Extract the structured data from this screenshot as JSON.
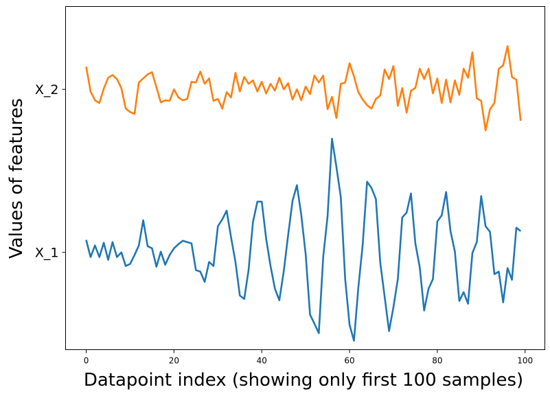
{
  "chart_data": {
    "type": "line",
    "title": "",
    "xlabel": "Datapoint index (showing only first 100 samples)",
    "ylabel": "Values of features",
    "x_ticks": [
      0,
      20,
      40,
      60,
      80,
      100
    ],
    "x_tick_labels": [
      "0",
      "20",
      "40",
      "60",
      "80",
      "100"
    ],
    "xlim": [
      -4.7,
      104.5
    ],
    "y_ticks": [
      0,
      1
    ],
    "y_tick_labels": [
      "X_1",
      "X_2"
    ],
    "ylim": [
      -0.597,
      1.508
    ],
    "grid": false,
    "legend": null,
    "x": [
      0,
      1,
      2,
      3,
      4,
      5,
      6,
      7,
      8,
      9,
      10,
      11,
      12,
      13,
      14,
      15,
      16,
      17,
      18,
      19,
      20,
      21,
      22,
      23,
      24,
      25,
      26,
      27,
      28,
      29,
      30,
      31,
      32,
      33,
      34,
      35,
      36,
      37,
      38,
      39,
      40,
      41,
      42,
      43,
      44,
      45,
      46,
      47,
      48,
      49,
      50,
      51,
      52,
      53,
      54,
      55,
      56,
      57,
      58,
      59,
      60,
      61,
      62,
      63,
      64,
      65,
      66,
      67,
      68,
      69,
      70,
      71,
      72,
      73,
      74,
      75,
      76,
      77,
      78,
      79,
      80,
      81,
      82,
      83,
      84,
      85,
      86,
      87,
      88,
      89,
      90,
      91,
      92,
      93,
      94,
      95,
      96,
      97,
      98,
      99
    ],
    "series": [
      {
        "name": "X_1",
        "color": "#1f77b4",
        "values": [
          0.076,
          -0.029,
          0.042,
          -0.029,
          0.059,
          -0.046,
          0.063,
          -0.029,
          0.0,
          -0.084,
          -0.071,
          -0.017,
          0.042,
          0.197,
          0.038,
          0.025,
          -0.088,
          0.004,
          -0.076,
          -0.017,
          0.025,
          0.05,
          0.071,
          0.063,
          0.055,
          -0.109,
          -0.118,
          -0.181,
          -0.059,
          -0.084,
          0.16,
          0.202,
          0.256,
          0.092,
          -0.059,
          -0.265,
          -0.286,
          -0.109,
          0.185,
          0.311,
          0.311,
          0.084,
          -0.084,
          -0.223,
          -0.294,
          -0.118,
          0.105,
          0.315,
          0.412,
          0.231,
          -0.008,
          -0.382,
          -0.437,
          -0.496,
          -0.029,
          0.223,
          0.697,
          0.525,
          0.34,
          -0.164,
          -0.445,
          -0.542,
          -0.219,
          0.046,
          0.433,
          0.395,
          0.328,
          -0.063,
          -0.273,
          -0.483,
          -0.336,
          -0.164,
          0.214,
          0.244,
          0.361,
          0.055,
          -0.092,
          -0.357,
          -0.223,
          -0.164,
          0.189,
          0.227,
          0.37,
          0.13,
          0.004,
          -0.298,
          -0.244,
          -0.315,
          -0.004,
          0.063,
          0.345,
          0.16,
          0.126,
          -0.134,
          -0.118,
          -0.307,
          -0.097,
          -0.168,
          0.151,
          0.13
        ]
      },
      {
        "name": "X_2",
        "color": "#ff7f0e",
        "values": [
          1.139,
          0.987,
          0.933,
          0.916,
          1.004,
          1.071,
          1.088,
          1.063,
          1.008,
          0.882,
          0.861,
          0.849,
          1.042,
          1.067,
          1.092,
          1.105,
          1.013,
          0.92,
          0.933,
          0.929,
          1.0,
          0.95,
          0.933,
          0.941,
          1.046,
          1.042,
          1.109,
          1.034,
          1.067,
          0.929,
          0.941,
          0.882,
          0.983,
          0.95,
          1.101,
          0.987,
          1.076,
          1.034,
          1.055,
          0.987,
          1.046,
          0.975,
          1.034,
          0.992,
          1.071,
          1.0,
          1.038,
          0.937,
          1.0,
          0.933,
          1.017,
          0.971,
          1.084,
          1.042,
          1.084,
          0.878,
          0.954,
          0.824,
          1.034,
          1.042,
          1.16,
          1.08,
          0.983,
          0.937,
          0.903,
          0.882,
          0.941,
          0.962,
          1.122,
          1.063,
          1.143,
          0.899,
          1.008,
          0.857,
          0.992,
          1.008,
          1.126,
          1.063,
          1.126,
          0.975,
          1.067,
          0.916,
          1.059,
          0.92,
          1.055,
          0.966,
          1.126,
          1.071,
          1.227,
          0.945,
          0.929,
          0.748,
          0.878,
          0.916,
          1.126,
          1.147,
          1.265,
          1.076,
          1.059,
          0.807
        ]
      }
    ]
  }
}
